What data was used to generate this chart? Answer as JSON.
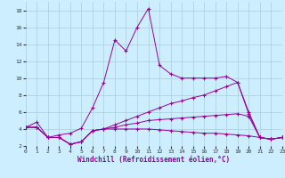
{
  "xlabel": "Windchill (Refroidissement éolien,°C)",
  "background_color": "#cceeff",
  "grid_color": "#aaccdd",
  "line_color": "#990099",
  "ylim": [
    2,
    19
  ],
  "xlim": [
    0,
    23
  ],
  "yticks": [
    2,
    4,
    6,
    8,
    10,
    12,
    14,
    16,
    18
  ],
  "xticks": [
    0,
    1,
    2,
    3,
    4,
    5,
    6,
    7,
    8,
    9,
    10,
    11,
    12,
    13,
    14,
    15,
    16,
    17,
    18,
    19,
    20,
    21,
    22,
    23
  ],
  "series": [
    {
      "x": [
        0,
        1,
        2,
        3,
        4,
        5,
        6,
        7,
        8,
        9,
        10,
        11,
        12,
        13,
        14,
        15,
        16,
        17,
        18,
        19,
        20,
        21,
        22,
        23
      ],
      "y": [
        4.2,
        4.8,
        3.0,
        3.3,
        3.5,
        4.1,
        6.5,
        9.5,
        14.5,
        13.2,
        16.0,
        18.2,
        11.5,
        10.5,
        10.0,
        10.0,
        10.0,
        10.0,
        10.2,
        9.5,
        6.0,
        3.0,
        2.8,
        3.0
      ]
    },
    {
      "x": [
        0,
        1,
        2,
        3,
        4,
        5,
        6,
        7,
        8,
        9,
        10,
        11,
        12,
        13,
        14,
        15,
        16,
        17,
        18,
        19,
        20,
        21,
        22,
        23
      ],
      "y": [
        4.2,
        4.2,
        3.0,
        3.0,
        2.2,
        2.5,
        3.8,
        4.0,
        4.5,
        5.0,
        5.5,
        6.0,
        6.5,
        7.0,
        7.3,
        7.7,
        8.0,
        8.5,
        9.0,
        9.5,
        5.8,
        3.0,
        2.8,
        3.0
      ]
    },
    {
      "x": [
        0,
        1,
        2,
        3,
        4,
        5,
        6,
        7,
        8,
        9,
        10,
        11,
        12,
        13,
        14,
        15,
        16,
        17,
        18,
        19,
        20,
        21,
        22,
        23
      ],
      "y": [
        4.2,
        4.2,
        3.0,
        3.0,
        2.2,
        2.5,
        3.8,
        4.0,
        4.2,
        4.5,
        4.7,
        5.0,
        5.1,
        5.2,
        5.3,
        5.4,
        5.5,
        5.6,
        5.7,
        5.8,
        5.5,
        3.0,
        2.8,
        3.0
      ]
    },
    {
      "x": [
        0,
        1,
        2,
        3,
        4,
        5,
        6,
        7,
        8,
        9,
        10,
        11,
        12,
        13,
        14,
        15,
        16,
        17,
        18,
        19,
        20,
        21,
        22,
        23
      ],
      "y": [
        4.2,
        4.2,
        3.0,
        3.0,
        2.2,
        2.5,
        3.8,
        4.0,
        4.0,
        4.0,
        4.0,
        4.0,
        3.9,
        3.8,
        3.7,
        3.6,
        3.5,
        3.5,
        3.4,
        3.3,
        3.2,
        3.0,
        2.8,
        3.0
      ]
    }
  ]
}
